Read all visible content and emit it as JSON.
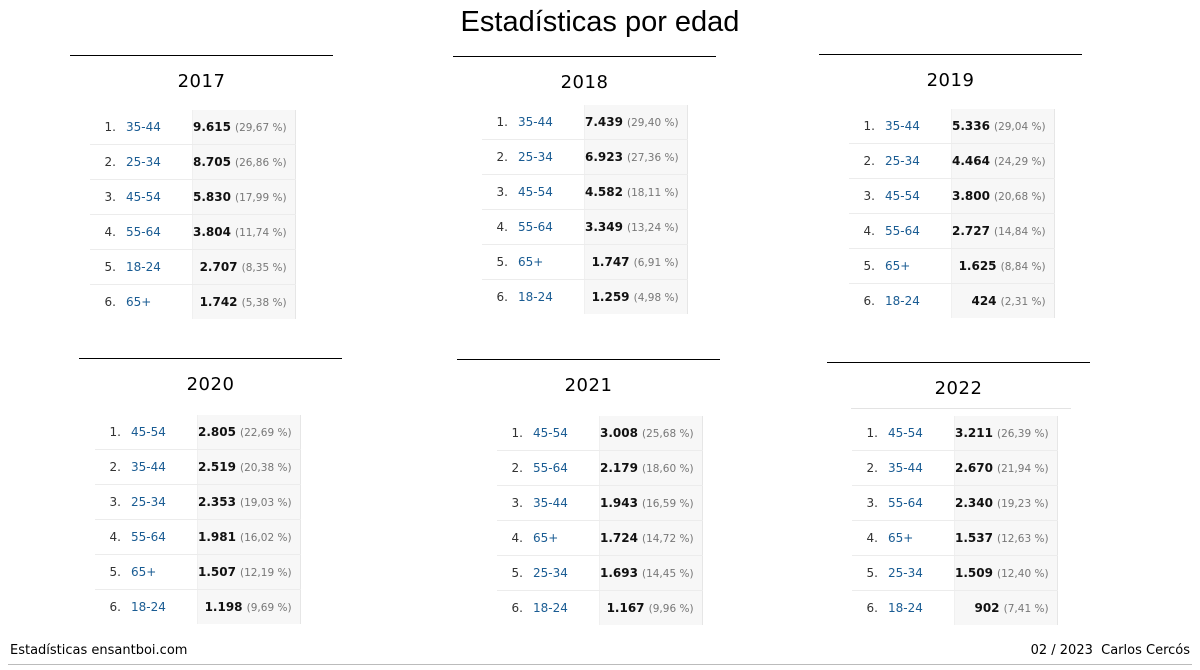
{
  "title": "Estadísticas por edad",
  "panels": [
    {
      "year": "2017",
      "rows": [
        {
          "rank": "1.",
          "label": "35-44",
          "value": "9.615",
          "pct": "(29,67 %)"
        },
        {
          "rank": "2.",
          "label": "25-34",
          "value": "8.705",
          "pct": "(26,86 %)"
        },
        {
          "rank": "3.",
          "label": "45-54",
          "value": "5.830",
          "pct": "(17,99 %)"
        },
        {
          "rank": "4.",
          "label": "55-64",
          "value": "3.804",
          "pct": "(11,74 %)"
        },
        {
          "rank": "5.",
          "label": "18-24",
          "value": "2.707",
          "pct": "(8,35 %)"
        },
        {
          "rank": "6.",
          "label": "65+",
          "value": "1.742",
          "pct": "(5,38 %)"
        }
      ]
    },
    {
      "year": "2018",
      "rows": [
        {
          "rank": "1.",
          "label": "35-44",
          "value": "7.439",
          "pct": "(29,40 %)"
        },
        {
          "rank": "2.",
          "label": "25-34",
          "value": "6.923",
          "pct": "(27,36 %)"
        },
        {
          "rank": "3.",
          "label": "45-54",
          "value": "4.582",
          "pct": "(18,11 %)"
        },
        {
          "rank": "4.",
          "label": "55-64",
          "value": "3.349",
          "pct": "(13,24 %)"
        },
        {
          "rank": "5.",
          "label": "65+",
          "value": "1.747",
          "pct": "(6,91 %)"
        },
        {
          "rank": "6.",
          "label": "18-24",
          "value": "1.259",
          "pct": "(4,98 %)"
        }
      ]
    },
    {
      "year": "2019",
      "rows": [
        {
          "rank": "1.",
          "label": "35-44",
          "value": "5.336",
          "pct": "(29,04 %)"
        },
        {
          "rank": "2.",
          "label": "25-34",
          "value": "4.464",
          "pct": "(24,29 %)"
        },
        {
          "rank": "3.",
          "label": "45-54",
          "value": "3.800",
          "pct": "(20,68 %)"
        },
        {
          "rank": "4.",
          "label": "55-64",
          "value": "2.727",
          "pct": "(14,84 %)"
        },
        {
          "rank": "5.",
          "label": "65+",
          "value": "1.625",
          "pct": "(8,84 %)"
        },
        {
          "rank": "6.",
          "label": "18-24",
          "value": "424",
          "pct": "(2,31 %)"
        }
      ]
    },
    {
      "year": "2020",
      "rows": [
        {
          "rank": "1.",
          "label": "45-54",
          "value": "2.805",
          "pct": "(22,69 %)"
        },
        {
          "rank": "2.",
          "label": "35-44",
          "value": "2.519",
          "pct": "(20,38 %)"
        },
        {
          "rank": "3.",
          "label": "25-34",
          "value": "2.353",
          "pct": "(19,03 %)"
        },
        {
          "rank": "4.",
          "label": "55-64",
          "value": "1.981",
          "pct": "(16,02 %)"
        },
        {
          "rank": "5.",
          "label": "65+",
          "value": "1.507",
          "pct": "(12,19 %)"
        },
        {
          "rank": "6.",
          "label": "18-24",
          "value": "1.198",
          "pct": "(9,69 %)"
        }
      ]
    },
    {
      "year": "2021",
      "rows": [
        {
          "rank": "1.",
          "label": "45-54",
          "value": "3.008",
          "pct": "(25,68 %)"
        },
        {
          "rank": "2.",
          "label": "55-64",
          "value": "2.179",
          "pct": "(18,60 %)"
        },
        {
          "rank": "3.",
          "label": "35-44",
          "value": "1.943",
          "pct": "(16,59 %)"
        },
        {
          "rank": "4.",
          "label": "65+",
          "value": "1.724",
          "pct": "(14,72 %)"
        },
        {
          "rank": "5.",
          "label": "25-34",
          "value": "1.693",
          "pct": "(14,45 %)"
        },
        {
          "rank": "6.",
          "label": "18-24",
          "value": "1.167",
          "pct": "(9,96 %)"
        }
      ]
    },
    {
      "year": "2022",
      "rows": [
        {
          "rank": "1.",
          "label": "45-54",
          "value": "3.211",
          "pct": "(26,39 %)"
        },
        {
          "rank": "2.",
          "label": "35-44",
          "value": "2.670",
          "pct": "(21,94 %)"
        },
        {
          "rank": "3.",
          "label": "55-64",
          "value": "2.340",
          "pct": "(19,23 %)"
        },
        {
          "rank": "4.",
          "label": "65+",
          "value": "1.537",
          "pct": "(12,63 %)"
        },
        {
          "rank": "5.",
          "label": "25-34",
          "value": "1.509",
          "pct": "(12,40 %)"
        },
        {
          "rank": "6.",
          "label": "18-24",
          "value": "902",
          "pct": "(7,41 %)"
        }
      ]
    }
  ],
  "footer": {
    "left": "Estadísticas ensantboi.com",
    "right": "02 / 2023  Carlos Cercós"
  }
}
